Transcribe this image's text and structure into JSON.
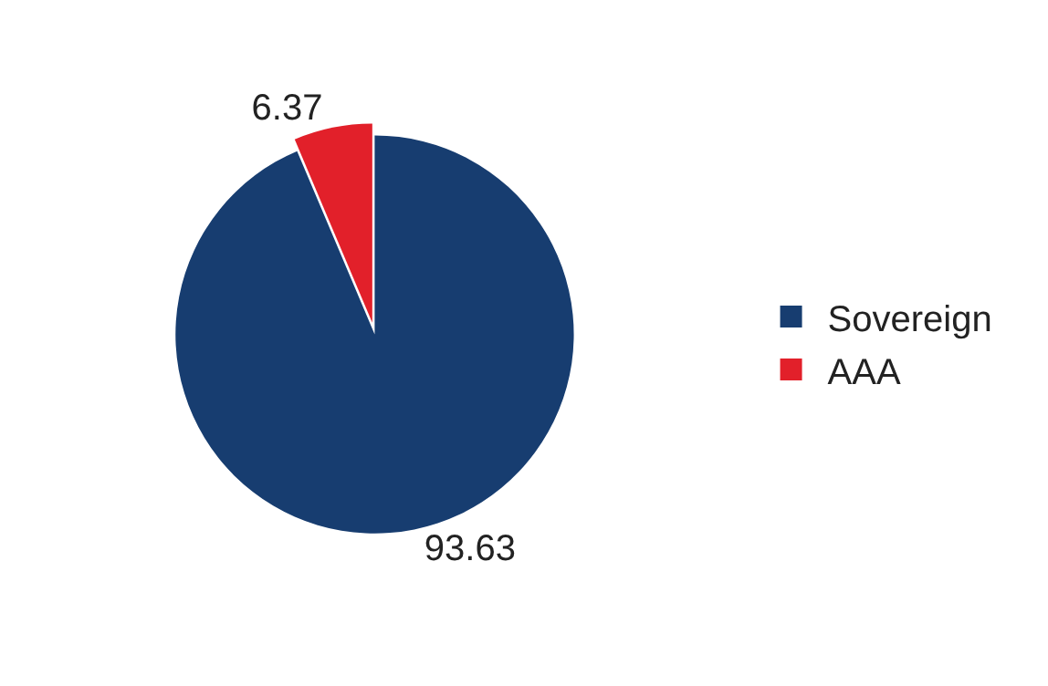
{
  "chart_data": {
    "type": "pie",
    "categories": [
      "Sovereign",
      "AAA"
    ],
    "values": [
      93.63,
      6.37
    ],
    "colors": [
      "#173d70",
      "#e2202a"
    ],
    "data_labels": true,
    "legend": "right"
  }
}
